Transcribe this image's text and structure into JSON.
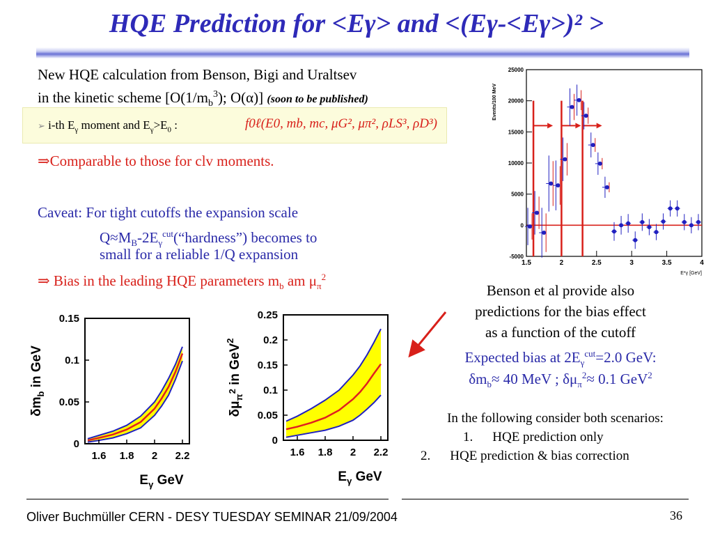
{
  "slide": {
    "title_prefix": "HQE Prediction for <E",
    "title_gamma": "γ",
    "title_mid": "> and <(E",
    "title_gamma2": "γ",
    "title_mid2": "-<E",
    "title_gamma3": "γ",
    "title_end": ">)² >",
    "page_number": "36",
    "footer": "Oliver Buchmüller CERN - DESY TUESDAY SEMINAR 21/09/2004"
  },
  "intro": {
    "line1": "New HQE calculation from Benson, Bigi and Uraltsev",
    "line2_a": "in the kinetic scheme [O(1/m",
    "line2_sub": "b",
    "line2_sup": "3",
    "line2_b": "); O(α)]",
    "line2_note": "(soon to be published)"
  },
  "moment_box": {
    "bullet": "➢",
    "text_a": "i-th  E",
    "text_sub": "γ",
    "text_b": " moment and E",
    "text_sub2": "γ",
    "text_c": ">E",
    "text_sub3": "0",
    "text_d": " :",
    "formula": "f0ℓ(E0, mb, mc, μG², μπ², ρLS³, ρD³)"
  },
  "comparable": "⇒Comparable to those for clv moments.",
  "caveat": {
    "line1": "Caveat: For tight cutoffs the expansion scale",
    "line2_a": "Q≈M",
    "line2_sub": "B",
    "line2_b": "-2E",
    "line2_sub2": "γ",
    "line2_sup": "cut",
    "line2_c": "(“hardness”) becomes to",
    "line3": "small for a reliable 1/Q expansion",
    "bias_a": "⇒ Bias in the leading HQE parameters m",
    "bias_sub": "b",
    "bias_b": " am μ",
    "bias_sub2": "π",
    "bias_sup": "2"
  },
  "right_text": {
    "l1": "Benson et al provide also",
    "l2": "predictions for the bias effect",
    "l3": "as a function of the cutoff",
    "l4_a": "Expected bias at 2E",
    "l4_sub": "γ",
    "l4_sup": "cut",
    "l4_b": "=2.0 GeV:",
    "l5_a": "δm",
    "l5_sub": "b",
    "l5_b": "≈ 40 MeV ; δμ",
    "l5_sub2": "π",
    "l5_sup": "2",
    "l5_c": "≈ 0.1 GeV",
    "l5_sup2": "2",
    "scenarios_head": "In the following consider both scenarios:",
    "s1_num": "1.",
    "s1": "HQE prediction only",
    "s2_num": "2.",
    "s2": "HQE prediction & bias correction"
  },
  "colors": {
    "title": "#2e2ab8",
    "red": "#d8201a",
    "blue": "#2a2aa8",
    "band": "#ffff00",
    "band_edge": "#2020c0"
  },
  "chart_data": [
    {
      "type": "scatter",
      "title": "",
      "xlabel": "E*γ [GeV]",
      "ylabel": "Events/100 MeV",
      "xlim": [
        1.5,
        4.0
      ],
      "ylim": [
        -5000,
        25000
      ],
      "xticks": [
        "1.5",
        "2",
        "2.5",
        "3",
        "3.5",
        "4"
      ],
      "yticks": [
        "-5000",
        "0",
        "5000",
        "10000",
        "15000",
        "20000",
        "25000"
      ],
      "series": [
        {
          "values": [
            {
              "x": 1.55,
              "y": -200,
              "err": 3000
            },
            {
              "x": 1.65,
              "y": 2000,
              "err": 3500
            },
            {
              "x": 1.75,
              "y": -1200,
              "err": 4000
            },
            {
              "x": 1.85,
              "y": 6700,
              "err": 4500
            },
            {
              "x": 1.95,
              "y": 6400,
              "err": 4000
            },
            {
              "x": 2.05,
              "y": 10600,
              "err": 3500
            },
            {
              "x": 2.15,
              "y": 19000,
              "err": 3000
            },
            {
              "x": 2.25,
              "y": 20100,
              "err": 2500
            },
            {
              "x": 2.35,
              "y": 17600,
              "err": 2200
            },
            {
              "x": 2.45,
              "y": 12900,
              "err": 2000
            },
            {
              "x": 2.55,
              "y": 9900,
              "err": 1800
            },
            {
              "x": 2.65,
              "y": 6100,
              "err": 1700
            },
            {
              "x": 2.75,
              "y": -1000,
              "err": 1500
            },
            {
              "x": 2.85,
              "y": 0,
              "err": 1500
            },
            {
              "x": 2.95,
              "y": 300,
              "err": 1500
            },
            {
              "x": 3.05,
              "y": -2400,
              "err": 1400
            },
            {
              "x": 3.15,
              "y": 500,
              "err": 1400
            },
            {
              "x": 3.25,
              "y": -300,
              "err": 1300
            },
            {
              "x": 3.35,
              "y": -1100,
              "err": 1300
            },
            {
              "x": 3.45,
              "y": 600,
              "err": 1300
            },
            {
              "x": 3.55,
              "y": 2700,
              "err": 1300
            },
            {
              "x": 3.65,
              "y": 2700,
              "err": 1300
            },
            {
              "x": 3.75,
              "y": 500,
              "err": 1300
            },
            {
              "x": 3.85,
              "y": 0,
              "err": 1300
            },
            {
              "x": 3.95,
              "y": 500,
              "err": 1300
            }
          ]
        }
      ],
      "cut_lines_x": [
        1.6,
        2.0,
        2.3
      ]
    },
    {
      "type": "area",
      "xlabel": "Eγ GeV",
      "ylabel": "δmb in GeV",
      "xlim": [
        1.5,
        2.25
      ],
      "ylim": [
        0,
        0.15
      ],
      "xticks": [
        "1.6",
        "1.8",
        "2",
        "2.2"
      ],
      "yticks": [
        "0",
        "0.05",
        "0.1",
        "0.15"
      ],
      "x": [
        1.52,
        1.6,
        1.7,
        1.8,
        1.9,
        2.0,
        2.05,
        2.1,
        2.15,
        2.2
      ],
      "central": [
        0.004,
        0.007,
        0.011,
        0.017,
        0.026,
        0.042,
        0.054,
        0.068,
        0.086,
        0.108
      ],
      "upper": [
        0.006,
        0.01,
        0.015,
        0.022,
        0.033,
        0.05,
        0.063,
        0.078,
        0.095,
        0.116
      ],
      "lower": [
        0.002,
        0.004,
        0.007,
        0.012,
        0.019,
        0.034,
        0.045,
        0.058,
        0.077,
        0.099
      ]
    },
    {
      "type": "area",
      "xlabel": "Eγ GeV",
      "ylabel": "δμπ2 in GeV2",
      "xlim": [
        1.5,
        2.25
      ],
      "ylim": [
        0,
        0.25
      ],
      "xticks": [
        "1.6",
        "1.8",
        "2",
        "2.2"
      ],
      "yticks": [
        "0",
        "0.05",
        "0.1",
        "0.15",
        "0.2",
        "0.25"
      ],
      "x": [
        1.52,
        1.6,
        1.7,
        1.8,
        1.9,
        2.0,
        2.05,
        2.1,
        2.15,
        2.2
      ],
      "central": [
        0.022,
        0.027,
        0.035,
        0.045,
        0.06,
        0.082,
        0.096,
        0.113,
        0.133,
        0.152
      ],
      "upper": [
        0.038,
        0.048,
        0.063,
        0.08,
        0.1,
        0.13,
        0.148,
        0.17,
        0.195,
        0.222
      ],
      "lower": [
        0.006,
        0.01,
        0.015,
        0.02,
        0.028,
        0.04,
        0.05,
        0.062,
        0.075,
        0.09
      ]
    }
  ]
}
